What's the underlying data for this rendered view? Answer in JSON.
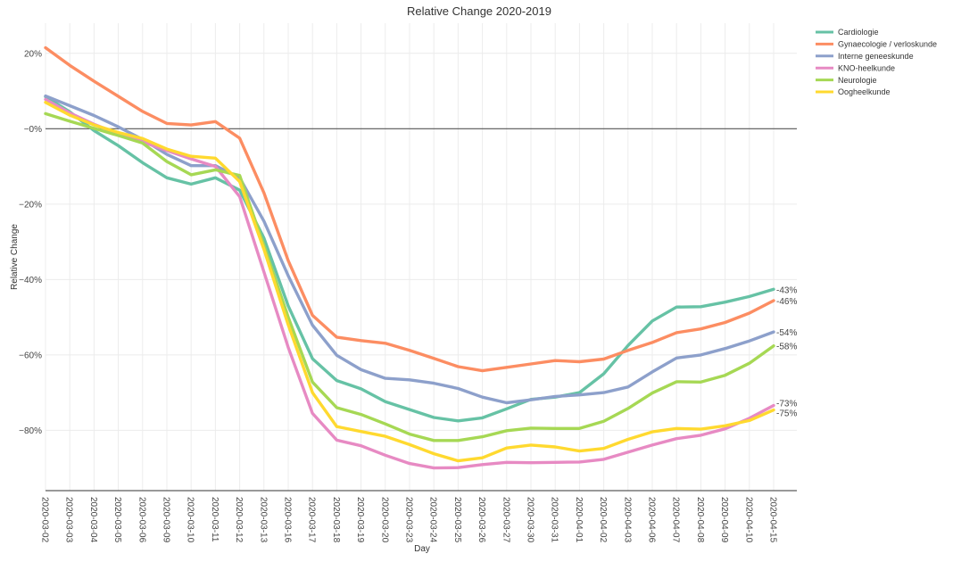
{
  "chart_data": {
    "type": "line",
    "title": "Relative Change 2020-2019",
    "xlabel": "Day",
    "ylabel": "Relative Change",
    "ylim": [
      -96,
      28
    ],
    "yticks": [
      20,
      0,
      -20,
      -40,
      -60,
      -80
    ],
    "ytick_labels": [
      "20%",
      "−0%",
      "−20%",
      "−40%",
      "−60%",
      "−80%"
    ],
    "grid": true,
    "legend_position": "top-right",
    "x": [
      "2020-03-02",
      "2020-03-03",
      "2020-03-04",
      "2020-03-05",
      "2020-03-06",
      "2020-03-09",
      "2020-03-10",
      "2020-03-11",
      "2020-03-12",
      "2020-03-13",
      "2020-03-16",
      "2020-03-17",
      "2020-03-18",
      "2020-03-19",
      "2020-03-20",
      "2020-03-23",
      "2020-03-24",
      "2020-03-25",
      "2020-03-26",
      "2020-03-27",
      "2020-03-30",
      "2020-03-31",
      "2020-04-01",
      "2020-04-02",
      "2020-04-03",
      "2020-04-06",
      "2020-04-07",
      "2020-04-08",
      "2020-04-09",
      "2020-04-10",
      "2020-04-15"
    ],
    "series": [
      {
        "name": "Cardiologie",
        "color": "#66c2a5",
        "end_label": "-43%",
        "values": [
          8.5,
          4.5,
          -0.5,
          -4.5,
          -9,
          -13,
          -14.7,
          -13,
          -16.3,
          -29,
          -47,
          -61,
          -66.8,
          -69,
          -72.4,
          -74.5,
          -76.6,
          -77.5,
          -76.7,
          -74.3,
          -71.8,
          -71.2,
          -70,
          -65,
          -57.5,
          -51,
          -47.3,
          -47.2,
          -46,
          -44.5,
          -42.6
        ]
      },
      {
        "name": "Gynaecologie / verloskunde",
        "color": "#fc8d62",
        "end_label": "-46%",
        "values": [
          21.5,
          16.8,
          12.6,
          8.6,
          4.6,
          1.4,
          1,
          1.9,
          -2.5,
          -17,
          -35,
          -49.5,
          -55.3,
          -56.2,
          -56.9,
          -58.8,
          -60.9,
          -63.1,
          -64.2,
          -63.3,
          -62.4,
          -61.5,
          -61.8,
          -61.1,
          -58.8,
          -56.7,
          -54.1,
          -53.1,
          -51.4,
          -48.9,
          -45.6
        ]
      },
      {
        "name": "Interne geneeskunde",
        "color": "#8da0cb",
        "end_label": "-54%",
        "values": [
          8.7,
          6.1,
          3.5,
          0.5,
          -2.8,
          -6.8,
          -9.8,
          -9.8,
          -13,
          -24.5,
          -39,
          -52.1,
          -60.1,
          -63.9,
          -66.2,
          -66.6,
          -67.5,
          -68.9,
          -71.2,
          -72.7,
          -71.9,
          -71,
          -70.6,
          -70,
          -68.5,
          -64.5,
          -60.8,
          -60,
          -58.3,
          -56.3,
          -53.9
        ]
      },
      {
        "name": "KNO-heelkunde",
        "color": "#e78ac3",
        "end_label": "-73%",
        "values": [
          7.8,
          4.2,
          1.2,
          -1.3,
          -3.5,
          -5.8,
          -8,
          -10,
          -18,
          -38,
          -58,
          -75.5,
          -82.6,
          -84.1,
          -86.6,
          -88.8,
          -90,
          -89.9,
          -89.1,
          -88.5,
          -88.6,
          -88.5,
          -88.4,
          -87.7,
          -85.8,
          -83.9,
          -82.2,
          -81.3,
          -79.6,
          -76.8,
          -73.4
        ]
      },
      {
        "name": "Neurologie",
        "color": "#a6d854",
        "end_label": "-58%",
        "values": [
          4,
          2,
          0.1,
          -1.8,
          -3.8,
          -8.7,
          -12.2,
          -10.9,
          -12.4,
          -31,
          -50,
          -67.2,
          -74,
          -75.8,
          -78.3,
          -81,
          -82.7,
          -82.7,
          -81.7,
          -80.1,
          -79.4,
          -79.5,
          -79.5,
          -77.6,
          -74.2,
          -70.1,
          -67.1,
          -67.2,
          -65.4,
          -62.2,
          -57.6
        ]
      },
      {
        "name": "Oogheelkunde",
        "color": "#ffd92f",
        "end_label": "-75%",
        "values": [
          7,
          3.6,
          1,
          -1,
          -2.6,
          -5.4,
          -7.3,
          -7.8,
          -14,
          -32,
          -52,
          -70,
          -79,
          -80.3,
          -81.6,
          -83.8,
          -86.2,
          -88.1,
          -87.3,
          -84.7,
          -83.9,
          -84.4,
          -85.5,
          -84.8,
          -82.4,
          -80.4,
          -79.5,
          -79.7,
          -78.8,
          -77.4,
          -74.6
        ]
      }
    ]
  }
}
